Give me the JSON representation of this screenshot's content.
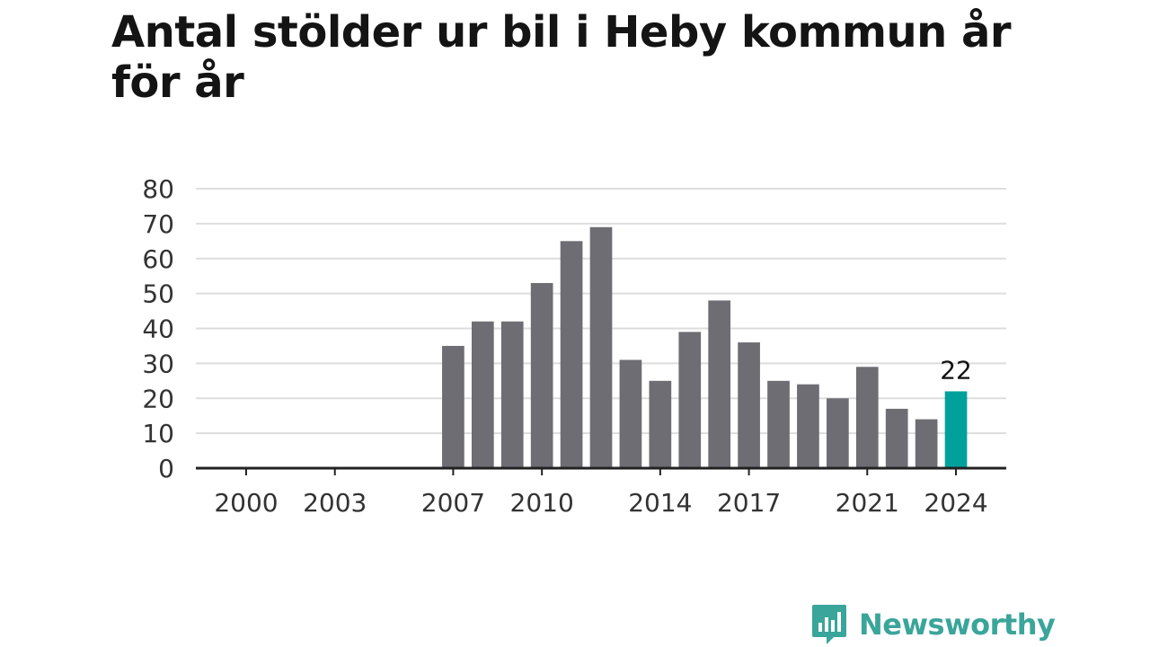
{
  "chart_data": {
    "type": "bar",
    "title": "Antal stölder ur bil i Heby kommun år för år",
    "xlabel": "",
    "ylabel": "",
    "categories": [
      2000,
      2001,
      2002,
      2003,
      2004,
      2005,
      2006,
      2007,
      2008,
      2009,
      2010,
      2011,
      2012,
      2013,
      2014,
      2015,
      2016,
      2017,
      2018,
      2019,
      2020,
      2021,
      2022,
      2023,
      2024
    ],
    "values": [
      null,
      null,
      null,
      null,
      null,
      null,
      null,
      35,
      42,
      42,
      53,
      65,
      69,
      31,
      25,
      39,
      48,
      36,
      25,
      24,
      20,
      29,
      17,
      14,
      22
    ],
    "x_ticks": [
      2000,
      2003,
      2007,
      2010,
      2014,
      2017,
      2021,
      2024
    ],
    "y_ticks": [
      0,
      10,
      20,
      30,
      40,
      50,
      60,
      70,
      80
    ],
    "ylim": [
      0,
      80
    ],
    "grid": "horizontal",
    "highlight": {
      "category": 2024,
      "value_label": "22"
    },
    "colors": {
      "bar": "#6e6d73",
      "highlight": "#00a19a",
      "grid": "#dddddd",
      "axis": "#222222"
    }
  },
  "brand": {
    "name": "Newsworthy",
    "icon": "newsworthy-logo-icon",
    "color": "#3aa59a"
  }
}
